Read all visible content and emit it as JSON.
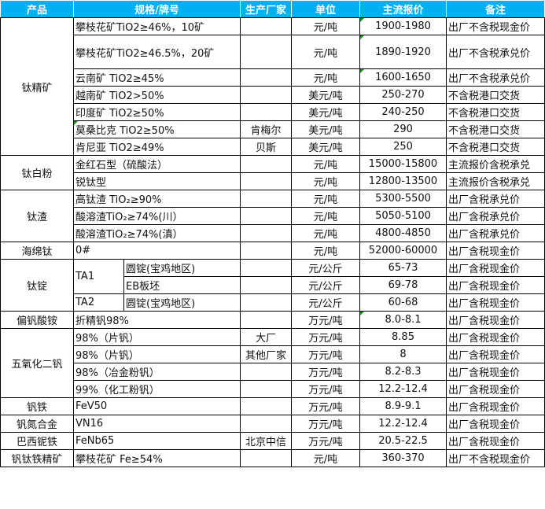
{
  "header": {
    "product": "产品",
    "spec": "规格/牌号",
    "maker": "生产厂家",
    "unit": "单位",
    "price": "主流报价",
    "note": "备注"
  },
  "colors": {
    "header_bg": "#00b0f0",
    "header_text": "#ffffff",
    "comment_marker": "#1a8a1a"
  },
  "groups": [
    {
      "product": "钛精矿",
      "rows": [
        {
          "spec": "攀枝花矿TiO2≥46%，10矿",
          "maker": "",
          "unit": "元/吨",
          "price": "1900-1980",
          "note": "出厂不含税现金价"
        },
        {
          "spec": "攀枝花矿TiO2≥46.5%，20矿",
          "maker": "",
          "unit": "元/吨",
          "price": "1890-1920",
          "note": "出厂不含税承兑价"
        },
        {
          "spec": "云南矿 TiO2≥45%",
          "maker": "",
          "unit": "元/吨",
          "price": "1600-1650",
          "note": "出厂不含税承兑价"
        },
        {
          "spec": "越南矿 TiO2>50%",
          "maker": "",
          "unit": "美元/吨",
          "price": "250-270",
          "note": "不含税港口交货"
        },
        {
          "spec": "印度矿 TiO2≥50%",
          "maker": "",
          "unit": "美元/吨",
          "price": "240-250",
          "note": "不含税港口交货"
        },
        {
          "spec": "莫桑比克 TiO2≥50%",
          "maker": "肯梅尔",
          "unit": "美元/吨",
          "price": "290",
          "note": "不含税港口交货"
        },
        {
          "spec": "肯尼亚 TiO2≥49%",
          "maker": "贝斯",
          "unit": "美元/吨",
          "price": "250",
          "note": "不含税港口交货"
        }
      ]
    },
    {
      "product": "钛白粉",
      "rows": [
        {
          "spec": "金红石型（硫酸法）",
          "maker": "",
          "unit": "元/吨",
          "price": "15000-15800",
          "note": "主流报价含税承兑"
        },
        {
          "spec": "锐钛型",
          "maker": "",
          "unit": "元/吨",
          "price": "12800-13500",
          "note": "主流报价含税承兑"
        }
      ]
    },
    {
      "product": "钛渣",
      "rows": [
        {
          "spec": "高钛渣 TiO₂≥90%",
          "maker": "",
          "unit": "元/吨",
          "price": "5300-5500",
          "note": "出厂含税承兑价"
        },
        {
          "spec": "酸溶渣TiO₂≥74%(川）",
          "maker": "",
          "unit": "元/吨",
          "price": "5050-5100",
          "note": "出厂含税承兑价"
        },
        {
          "spec": "酸溶渣TiO₂≥74%(滇）",
          "maker": "",
          "unit": "元/吨",
          "price": "4800-4850",
          "note": "出厂含税承兑价"
        }
      ]
    },
    {
      "product": "海绵钛",
      "rows": [
        {
          "spec": "0#",
          "maker": "",
          "unit": "元/吨",
          "price": "52000-60000",
          "note": "出厂含税现金价"
        }
      ]
    },
    {
      "product": "钛锭",
      "rows": [
        {
          "grade": "TA1",
          "spec": "圆锭(宝鸡地区)",
          "maker": "",
          "unit": "元/公斤",
          "price": "65-73",
          "note": "出厂含税现金价"
        },
        {
          "grade": "",
          "spec": "EB板坯",
          "maker": "",
          "unit": "元/公斤",
          "price": "69-78",
          "note": "出厂含税现金价"
        },
        {
          "grade": "TA2",
          "spec": "圆锭(宝鸡地区)",
          "maker": "",
          "unit": "元/公斤",
          "price": "60-68",
          "note": "出厂含税现金价"
        }
      ]
    },
    {
      "product": "偏钒酸铵",
      "rows": [
        {
          "spec": "折精钒98%",
          "maker": "",
          "unit": "万元/吨",
          "price": "8.0-8.1",
          "note": "出厂含税现金价"
        }
      ]
    },
    {
      "product": "五氧化二钒",
      "rows": [
        {
          "spec": "98%（片钒）",
          "maker": "大厂",
          "unit": "万元/吨",
          "price": "8.85",
          "note": "出厂含税现金价"
        },
        {
          "spec": "98%（片钒）",
          "maker": "其他厂家",
          "unit": "万元/吨",
          "price": "8",
          "note": "出厂含税现金价"
        },
        {
          "spec": "98%（冶金粉钒）",
          "maker": "",
          "unit": "万元/吨",
          "price": "8.2-8.3",
          "note": "出厂含税现金价"
        },
        {
          "spec": "99%（化工粉钒）",
          "maker": "",
          "unit": "万元/吨",
          "price": "12.2-12.4",
          "note": "出厂含税现金价"
        }
      ]
    },
    {
      "product": "钒铁",
      "rows": [
        {
          "spec": "FeV50",
          "maker": "",
          "unit": "万元/吨",
          "price": "8.9-9.1",
          "note": "出厂含税现金价"
        }
      ]
    },
    {
      "product": "钒氮合金",
      "rows": [
        {
          "spec": "VN16",
          "maker": "",
          "unit": "万元/吨",
          "price": "12.2-12.4",
          "note": "出厂含税现金价"
        }
      ]
    },
    {
      "product": "巴西铌铁",
      "rows": [
        {
          "spec": "FeNb65",
          "maker": "北京中信",
          "unit": "万元/吨",
          "price": "20.5-22.5",
          "note": "出厂含税现金价"
        }
      ]
    },
    {
      "product": "钒钛铁精矿",
      "rows": [
        {
          "spec": "攀枝花矿 Fe≥54%",
          "maker": "",
          "unit": "元/吨",
          "price": "360-370",
          "note": "出厂不含税现金价"
        }
      ]
    }
  ]
}
